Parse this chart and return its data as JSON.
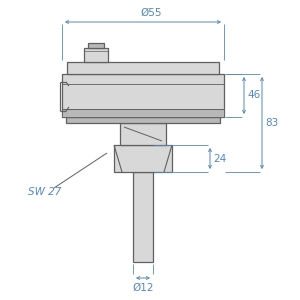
{
  "bg_color": "#ffffff",
  "line_color": "#606060",
  "dim_color": "#5588bb",
  "fill_light": "#d8d8d8",
  "fill_dark": "#b8b8b8",
  "annotations": {
    "phi55": "Ø55",
    "phi12": "Ø12",
    "dim46": "46",
    "dim83": "83",
    "dim24": "24",
    "sw27": "SW 27"
  },
  "figsize": [
    3.0,
    3.0
  ],
  "dpi": 100
}
